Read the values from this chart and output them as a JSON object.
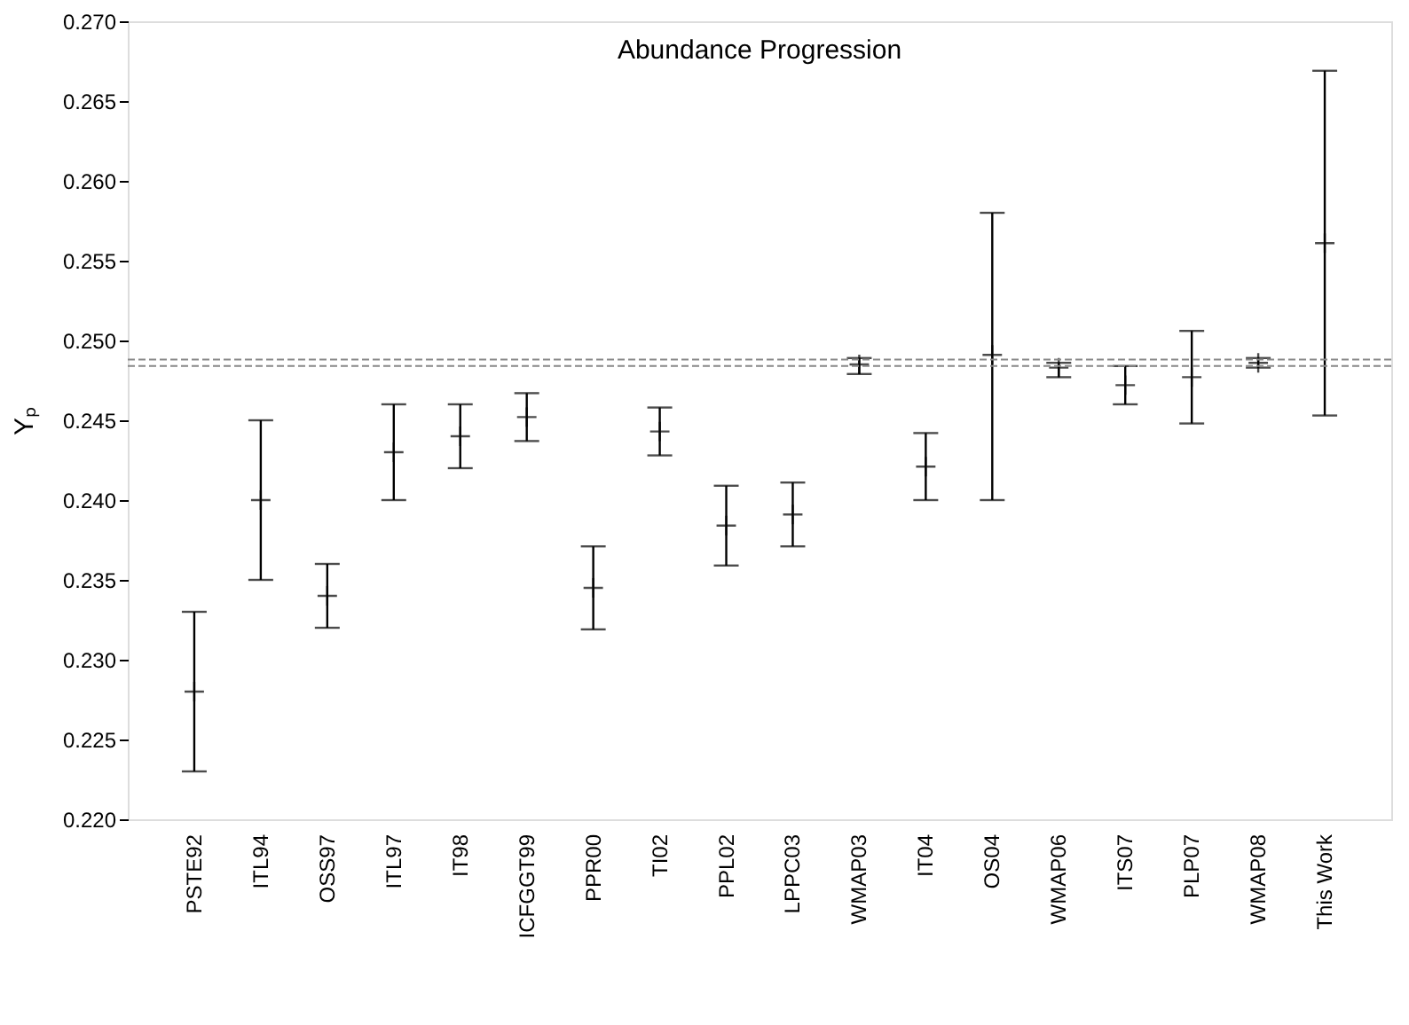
{
  "chart_data": {
    "type": "scatter",
    "title": "Abundance Progression",
    "ylabel": "Yₚ",
    "categories": [
      "PSTE92",
      "ITL94",
      "OSS97",
      "ITL97",
      "IT98",
      "ICFGGT99",
      "PPR00",
      "TI02",
      "PPL02",
      "LPPC03",
      "WMAP03",
      "IT04",
      "OS04",
      "WMAP06",
      "ITS07",
      "PLP07",
      "WMAP08",
      "This Work"
    ],
    "series": [
      {
        "color": "#000000",
        "values": [
          0.228,
          0.24,
          0.234,
          0.243,
          0.244,
          0.2452,
          0.2345,
          0.2443,
          0.2384,
          0.2391,
          0.2485,
          0.2421,
          0.2491,
          0.2483,
          0.2472,
          0.2477,
          0.2486,
          0.2561
        ],
        "errors": [
          [
            0.223,
            0.233
          ],
          [
            0.235,
            0.245
          ],
          [
            0.232,
            0.236
          ],
          [
            0.24,
            0.246
          ],
          [
            0.242,
            0.246
          ],
          [
            0.2437,
            0.2467
          ],
          [
            0.2319,
            0.2371
          ],
          [
            0.2428,
            0.2458
          ],
          [
            0.2359,
            0.2409
          ],
          [
            0.2371,
            0.2411
          ],
          [
            0.2479,
            0.2489
          ],
          [
            0.24,
            0.2442
          ],
          [
            0.24,
            0.258
          ],
          [
            0.2477,
            0.2486
          ],
          [
            0.246,
            0.2484
          ],
          [
            0.2448,
            0.2506
          ],
          [
            0.2483,
            0.2489
          ],
          [
            0.2453,
            0.2669
          ]
        ]
      }
    ],
    "ylim": [
      0.22,
      0.27
    ],
    "yticks": [
      {
        "value": 0.22,
        "label": "0.220"
      },
      0.225,
      {
        "value": 0.23,
        "label": "0.230"
      },
      0.235,
      {
        "value": 0.24,
        "label": "0.240"
      },
      0.245,
      {
        "value": 0.25,
        "label": "0.250"
      },
      0.255,
      {
        "value": 0.26,
        "label": "0.260"
      },
      0.265,
      {
        "value": 0.27,
        "label": "0.270"
      }
    ],
    "ref_lines": [
      {
        "axis": "y",
        "value": 0.2488,
        "color": "#888888",
        "line_style": "dashed"
      },
      {
        "axis": "y",
        "value": 0.2484,
        "color": "#888888",
        "line_style": "dashed"
      }
    ],
    "marker": "cross",
    "grid": false
  }
}
